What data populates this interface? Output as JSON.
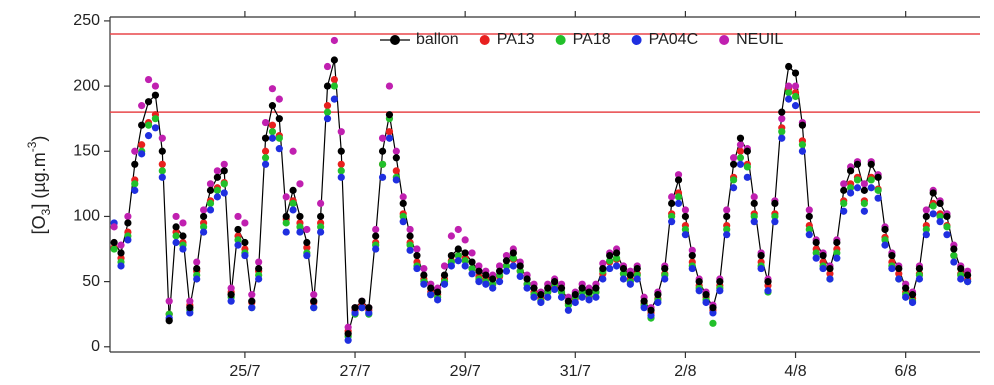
{
  "chart_data": {
    "type": "scatter",
    "ylabel_parts": [
      "[O",
      "3",
      "] (µg.m",
      "-3",
      ")"
    ],
    "xlim": [
      22.55,
      38.35
    ],
    "ylim": [
      -4,
      253
    ],
    "xticks": [
      {
        "value": 25,
        "label": "25/7"
      },
      {
        "value": 27,
        "label": "27/7"
      },
      {
        "value": 29,
        "label": "29/7"
      },
      {
        "value": 31,
        "label": "31/7"
      },
      {
        "value": 33,
        "label": "2/8"
      },
      {
        "value": 35,
        "label": "4/8"
      },
      {
        "value": 37,
        "label": "6/8"
      }
    ],
    "yticks": [
      0,
      50,
      100,
      150,
      200,
      250
    ],
    "hlines": [
      180,
      240
    ],
    "hline_color": "#e8474a",
    "legend": "upper right",
    "x": [
      22.625,
      22.75,
      22.875,
      23,
      23.125,
      23.25,
      23.375,
      23.5,
      23.625,
      23.75,
      23.875,
      24,
      24.125,
      24.25,
      24.375,
      24.5,
      24.625,
      24.75,
      24.875,
      25,
      25.125,
      25.25,
      25.375,
      25.5,
      25.625,
      25.75,
      25.875,
      26,
      26.125,
      26.25,
      26.375,
      26.5,
      26.625,
      26.75,
      26.875,
      27,
      27.125,
      27.25,
      27.375,
      27.5,
      27.625,
      27.75,
      27.875,
      28,
      28.125,
      28.25,
      28.375,
      28.5,
      28.625,
      28.75,
      28.875,
      29,
      29.125,
      29.25,
      29.375,
      29.5,
      29.625,
      29.75,
      29.875,
      30,
      30.125,
      30.25,
      30.375,
      30.5,
      30.625,
      30.75,
      30.875,
      31,
      31.125,
      31.25,
      31.375,
      31.5,
      31.625,
      31.75,
      31.875,
      32,
      32.125,
      32.25,
      32.375,
      32.5,
      32.625,
      32.75,
      32.875,
      33,
      33.125,
      33.25,
      33.375,
      33.5,
      33.625,
      33.75,
      33.875,
      34,
      34.125,
      34.25,
      34.375,
      34.5,
      34.625,
      34.75,
      34.875,
      35,
      35.125,
      35.25,
      35.375,
      35.5,
      35.625,
      35.75,
      35.875,
      36,
      36.125,
      36.25,
      36.375,
      36.5,
      36.625,
      36.75,
      36.875,
      37,
      37.125,
      37.25,
      37.375,
      37.5,
      37.625,
      37.75,
      37.875,
      38,
      38.125
    ],
    "series": [
      {
        "name": "ballon",
        "color": "#000000",
        "line": true,
        "values": [
          80,
          72,
          95,
          140,
          170,
          188,
          193,
          150,
          20,
          92,
          85,
          30,
          60,
          100,
          120,
          130,
          135,
          40,
          90,
          80,
          35,
          60,
          160,
          185,
          175,
          100,
          120,
          100,
          80,
          35,
          100,
          200,
          220,
          150,
          10,
          30,
          35,
          30,
          85,
          150,
          178,
          145,
          110,
          85,
          70,
          55,
          45,
          42,
          55,
          70,
          75,
          72,
          65,
          58,
          55,
          52,
          58,
          66,
          72,
          62,
          52,
          45,
          40,
          45,
          50,
          45,
          35,
          40,
          45,
          42,
          45,
          60,
          70,
          72,
          60,
          55,
          60,
          35,
          28,
          40,
          60,
          110,
          128,
          100,
          70,
          50,
          40,
          30,
          50,
          100,
          140,
          160,
          150,
          110,
          70,
          50,
          110,
          180,
          215,
          210,
          170,
          100,
          80,
          70,
          60,
          80,
          120,
          135,
          140,
          120,
          140,
          130,
          90,
          70,
          60,
          45,
          40,
          60,
          100,
          118,
          110,
          100,
          75,
          60,
          55
        ]
      },
      {
        "name": "PA13",
        "color": "#e8201f",
        "values": [
          76,
          68,
          88,
          128,
          155,
          172,
          178,
          140,
          25,
          88,
          80,
          32,
          58,
          95,
          112,
          122,
          126,
          42,
          85,
          75,
          34,
          58,
          150,
          170,
          162,
          98,
          112,
          95,
          76,
          34,
          95,
          185,
          205,
          140,
          12,
          28,
          32,
          28,
          80,
          140,
          165,
          135,
          102,
          80,
          65,
          52,
          42,
          40,
          52,
          66,
          70,
          68,
          60,
          54,
          52,
          48,
          54,
          62,
          67,
          58,
          48,
          42,
          37,
          42,
          46,
          42,
          33,
          37,
          42,
          39,
          42,
          56,
          65,
          67,
          56,
          52,
          56,
          33,
          26,
          37,
          56,
          102,
          118,
          93,
          65,
          47,
          38,
          28,
          47,
          93,
          130,
          150,
          140,
          102,
          65,
          47,
          102,
          168,
          198,
          195,
          158,
          93,
          75,
          65,
          56,
          75,
          112,
          125,
          130,
          112,
          130,
          121,
          84,
          65,
          56,
          42,
          37,
          56,
          93,
          110,
          102,
          93,
          70,
          56,
          52
        ]
      },
      {
        "name": "PA18",
        "color": "#22c02a",
        "values": [
          75,
          65,
          85,
          125,
          150,
          170,
          175,
          135,
          25,
          85,
          78,
          28,
          55,
          92,
          110,
          120,
          125,
          38,
          82,
          72,
          30,
          55,
          145,
          165,
          160,
          95,
          110,
          92,
          72,
          30,
          92,
          180,
          200,
          135,
          8,
          25,
          30,
          25,
          78,
          140,
          175,
          130,
          100,
          78,
          62,
          50,
          40,
          38,
          50,
          65,
          70,
          66,
          60,
          52,
          50,
          48,
          55,
          62,
          68,
          58,
          48,
          40,
          35,
          42,
          48,
          42,
          32,
          38,
          42,
          40,
          42,
          58,
          66,
          68,
          56,
          50,
          55,
          32,
          22,
          36,
          55,
          100,
          115,
          90,
          62,
          45,
          36,
          18,
          45,
          90,
          128,
          145,
          138,
          100,
          62,
          42,
          100,
          165,
          195,
          192,
          155,
          90,
          72,
          62,
          52,
          72,
          110,
          122,
          128,
          110,
          128,
          120,
          82,
          62,
          52,
          40,
          35,
          55,
          90,
          108,
          100,
          92,
          70,
          55,
          50
        ]
      },
      {
        "name": "PA04C",
        "color": "#1f2fe0",
        "values": [
          95,
          62,
          82,
          120,
          148,
          162,
          168,
          130,
          22,
          80,
          75,
          26,
          52,
          88,
          105,
          115,
          118,
          35,
          78,
          70,
          30,
          52,
          140,
          160,
          152,
          88,
          105,
          88,
          70,
          30,
          88,
          175,
          190,
          130,
          5,
          26,
          30,
          26,
          75,
          130,
          160,
          128,
          96,
          74,
          60,
          48,
          40,
          36,
          48,
          62,
          66,
          62,
          56,
          50,
          48,
          45,
          50,
          58,
          62,
          54,
          45,
          38,
          34,
          38,
          44,
          38,
          28,
          34,
          38,
          36,
          38,
          52,
          60,
          62,
          52,
          48,
          52,
          30,
          24,
          34,
          52,
          96,
          110,
          86,
          60,
          43,
          34,
          26,
          43,
          86,
          122,
          140,
          130,
          96,
          60,
          43,
          96,
          160,
          190,
          185,
          150,
          86,
          68,
          60,
          52,
          68,
          104,
          118,
          122,
          104,
          122,
          114,
          78,
          60,
          52,
          38,
          34,
          52,
          86,
          102,
          96,
          86,
          65,
          52,
          50
        ]
      },
      {
        "name": "NEUIL",
        "color": "#c020b0",
        "values": [
          92,
          78,
          100,
          150,
          185,
          205,
          200,
          160,
          35,
          100,
          95,
          35,
          65,
          105,
          125,
          135,
          140,
          45,
          100,
          95,
          40,
          65,
          172,
          198,
          190,
          115,
          150,
          125,
          90,
          40,
          110,
          215,
          235,
          165,
          15,
          30,
          35,
          30,
          90,
          160,
          200,
          150,
          115,
          90,
          75,
          60,
          48,
          45,
          62,
          85,
          90,
          82,
          72,
          62,
          58,
          55,
          62,
          70,
          75,
          65,
          55,
          48,
          42,
          48,
          52,
          48,
          38,
          42,
          48,
          45,
          48,
          64,
          72,
          75,
          62,
          58,
          62,
          38,
          30,
          42,
          62,
          115,
          132,
          105,
          74,
          52,
          42,
          32,
          52,
          105,
          145,
          155,
          152,
          115,
          72,
          52,
          112,
          175,
          200,
          200,
          172,
          105,
          82,
          72,
          62,
          82,
          125,
          138,
          142,
          125,
          142,
          132,
          92,
          72,
          62,
          48,
          42,
          62,
          105,
          120,
          112,
          102,
          78,
          62,
          58
        ]
      }
    ]
  }
}
